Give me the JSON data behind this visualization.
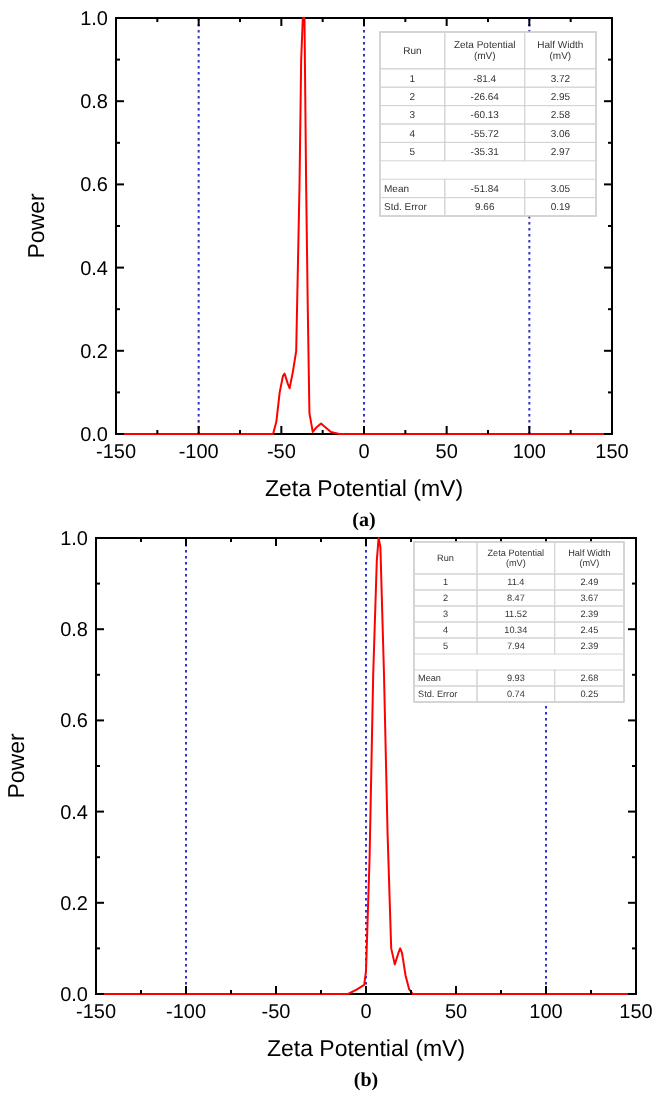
{
  "chart_data": [
    {
      "type": "line",
      "xlabel": "Zeta Potential (mV)",
      "ylabel": "Power",
      "xlim": [
        -150,
        150
      ],
      "ylim": [
        0,
        1
      ],
      "xticks": [
        -150,
        {
          "value": -125,
          "label": null
        },
        -100,
        {
          "value": -75,
          "label": null
        },
        -50,
        {
          "value": -25,
          "label": null
        },
        0,
        {
          "value": 25,
          "label": null
        },
        50,
        {
          "value": 75,
          "label": null
        },
        100,
        {
          "value": 125,
          "label": null
        },
        150
      ],
      "yticks": [
        {
          "value": 0,
          "label": "0.0"
        },
        {
          "value": 0.1,
          "label": null
        },
        0.2,
        {
          "value": 0.3,
          "label": null
        },
        0.4,
        {
          "value": 0.5,
          "label": null
        },
        0.6,
        {
          "value": 0.7,
          "label": null
        },
        0.8,
        {
          "value": 0.9,
          "label": null
        },
        {
          "value": 1,
          "label": "1.0"
        }
      ],
      "grid": false,
      "marker": "none",
      "line_style": "solid",
      "ref_lines": [
        {
          "axis": "x",
          "value": -100,
          "color": "#3333cc",
          "line_style": "dotted"
        },
        {
          "axis": "x",
          "value": 0,
          "color": "#3333cc",
          "line_style": "dotted"
        },
        {
          "axis": "x",
          "value": 100,
          "color": "#3333cc",
          "line_style": "dotted"
        }
      ],
      "series": [
        {
          "color": "#ff0000",
          "x": [
            -150,
            -55,
            -53,
            -51,
            -49,
            -48,
            -46,
            -45,
            -43,
            -41,
            -39,
            -38,
            -37,
            -36,
            -35,
            -34,
            -33,
            -31,
            -29,
            -26,
            -23,
            -20,
            -15,
            150
          ],
          "values": [
            0,
            0,
            0.03,
            0.1,
            0.14,
            0.145,
            0.12,
            0.11,
            0.15,
            0.2,
            0.6,
            0.9,
            1.0,
            1.0,
            0.6,
            0.3,
            0.05,
            0.005,
            0.015,
            0.025,
            0.015,
            0.005,
            0,
            0
          ]
        }
      ],
      "annotations": [
        "Run",
        "Zeta Potential\n(mV)",
        "Half Width\n(mV)",
        "1",
        "-81.4",
        "3.72",
        "2",
        "-26.64",
        "2.95",
        "3",
        "-60.13",
        "2.58",
        "4",
        "-55.72",
        "3.06",
        "5",
        "-35.31",
        "2.97",
        "Mean",
        "-51.84",
        "3.05",
        "Std. Error",
        "9.66",
        "0.19",
        "(a)"
      ]
    },
    {
      "type": "line",
      "xlabel": "Zeta Potential (mV)",
      "ylabel": "Power",
      "xlim": [
        -150,
        150
      ],
      "ylim": [
        0,
        1
      ],
      "xticks": [
        -150,
        {
          "value": -125,
          "label": null
        },
        -100,
        {
          "value": -75,
          "label": null
        },
        -50,
        {
          "value": -25,
          "label": null
        },
        0,
        {
          "value": 25,
          "label": null
        },
        50,
        {
          "value": 75,
          "label": null
        },
        100,
        {
          "value": 125,
          "label": null
        },
        150
      ],
      "yticks": [
        {
          "value": 0,
          "label": "0.0"
        },
        {
          "value": 0.1,
          "label": null
        },
        0.2,
        {
          "value": 0.3,
          "label": null
        },
        0.4,
        {
          "value": 0.5,
          "label": null
        },
        0.6,
        {
          "value": 0.7,
          "label": null
        },
        0.8,
        {
          "value": 0.9,
          "label": null
        },
        {
          "value": 1,
          "label": "1.0"
        }
      ],
      "grid": false,
      "marker": "none",
      "line_style": "solid",
      "ref_lines": [
        {
          "axis": "x",
          "value": -100,
          "color": "#3333cc",
          "line_style": "dotted"
        },
        {
          "axis": "x",
          "value": 0,
          "color": "#3333cc",
          "line_style": "dotted"
        },
        {
          "axis": "x",
          "value": 100,
          "color": "#3333cc",
          "line_style": "dotted"
        }
      ],
      "series": [
        {
          "color": "#ff0000",
          "x": [
            -150,
            -10,
            -5,
            -1,
            0,
            2,
            4,
            6,
            7,
            8,
            10,
            12,
            14,
            16,
            18,
            19,
            20,
            22,
            24,
            26,
            150
          ],
          "values": [
            0,
            0,
            0.01,
            0.02,
            0.05,
            0.3,
            0.7,
            0.95,
            1.0,
            0.98,
            0.7,
            0.35,
            0.1,
            0.065,
            0.09,
            0.1,
            0.09,
            0.04,
            0.01,
            0,
            0
          ]
        }
      ],
      "annotations": [
        "Run",
        "Zeta Potential\n(mV)",
        "Half Width\n(mV)",
        "1",
        "11.4",
        "2.49",
        "2",
        "8.47",
        "3.67",
        "3",
        "11.52",
        "2.39",
        "4",
        "10.34",
        "2.45",
        "5",
        "7.94",
        "2.39",
        "Mean",
        "9.93",
        "2.68",
        "Std. Error",
        "0.74",
        "0.25",
        "(b)"
      ]
    }
  ]
}
